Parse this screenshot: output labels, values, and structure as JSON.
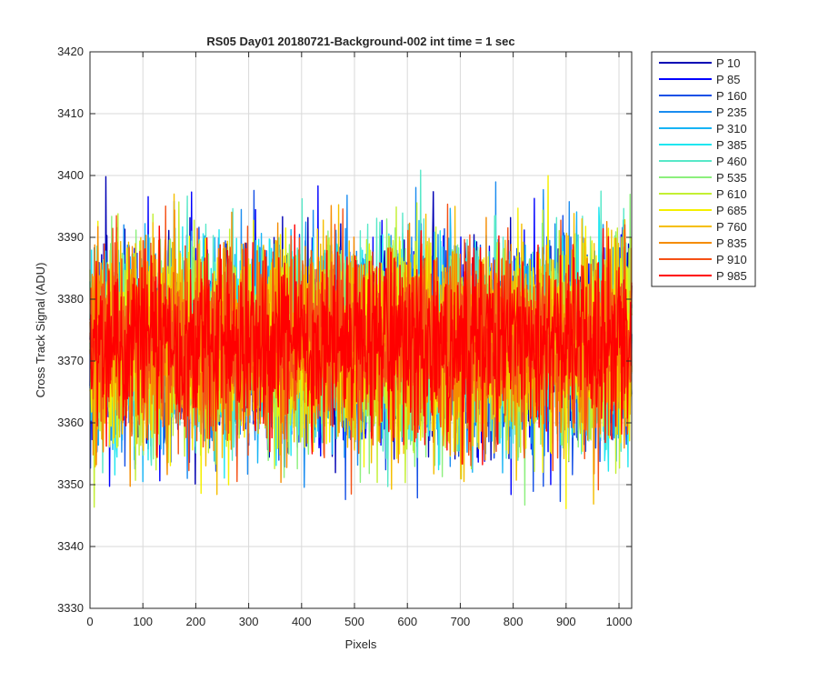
{
  "chart_data": {
    "type": "line",
    "title": "RS05 Day01 20180721-Background-002 int time = 1 sec",
    "xlabel": "Pixels",
    "ylabel": "Cross Track Signal (ADU)",
    "xlim": [
      0,
      1024
    ],
    "ylim": [
      3330,
      3420
    ],
    "xticks": [
      0,
      100,
      200,
      300,
      400,
      500,
      600,
      700,
      800,
      900,
      1000
    ],
    "yticks": [
      3330,
      3340,
      3350,
      3360,
      3370,
      3380,
      3390,
      3400,
      3410,
      3420
    ],
    "grid": true,
    "legend_position": "outside-top-right",
    "series_style": "dense noise around ~3373 ADU, spanning roughly 3340 to 3413",
    "series": [
      {
        "name": "P 10",
        "color": "#0000b4",
        "mean": 3373,
        "sd": 8
      },
      {
        "name": "P 85",
        "color": "#0000ff",
        "mean": 3373,
        "sd": 8
      },
      {
        "name": "P 160",
        "color": "#1450e6",
        "mean": 3373,
        "sd": 8
      },
      {
        "name": "P 235",
        "color": "#1a8cf0",
        "mean": 3373,
        "sd": 8
      },
      {
        "name": "P 310",
        "color": "#17b4f5",
        "mean": 3373,
        "sd": 8
      },
      {
        "name": "P 385",
        "color": "#20e6f0",
        "mean": 3373,
        "sd": 8
      },
      {
        "name": "P 460",
        "color": "#57e8c8",
        "mean": 3373,
        "sd": 8
      },
      {
        "name": "P 535",
        "color": "#8cf07d",
        "mean": 3373,
        "sd": 8
      },
      {
        "name": "P 610",
        "color": "#c3f032",
        "mean": 3373,
        "sd": 8
      },
      {
        "name": "P 685",
        "color": "#f5f000",
        "mean": 3373,
        "sd": 8
      },
      {
        "name": "P 760",
        "color": "#f5be00",
        "mean": 3373,
        "sd": 8
      },
      {
        "name": "P 835",
        "color": "#f58c00",
        "mean": 3373,
        "sd": 8
      },
      {
        "name": "P 910",
        "color": "#f55014",
        "mean": 3373,
        "sd": 8
      },
      {
        "name": "P 985",
        "color": "#ff0000",
        "mean": 3373,
        "sd": 7
      }
    ]
  }
}
